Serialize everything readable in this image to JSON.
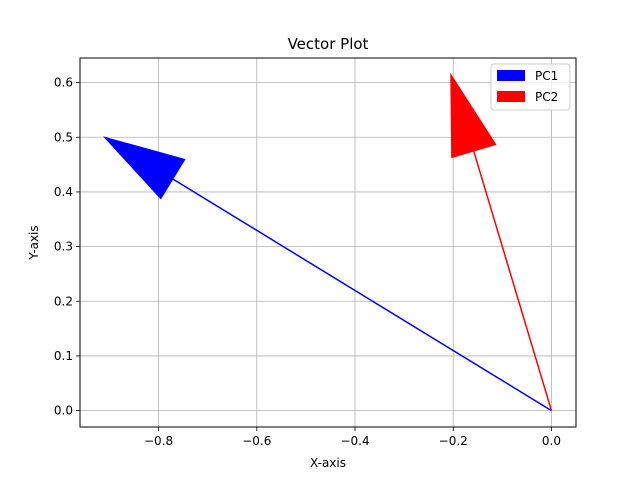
{
  "chart_data": {
    "type": "vector",
    "title": "Vector Plot",
    "xlabel": "X-axis",
    "ylabel": "Y-axis",
    "xlim": [
      -0.96,
      0.05
    ],
    "ylim": [
      -0.03,
      0.645
    ],
    "x_ticks": [
      -0.8,
      -0.6,
      -0.4,
      -0.2,
      0.0
    ],
    "x_tick_labels": [
      "−0.8",
      "−0.6",
      "−0.4",
      "−0.2",
      "0.0"
    ],
    "y_ticks": [
      0.0,
      0.1,
      0.2,
      0.3,
      0.4,
      0.5,
      0.6
    ],
    "y_tick_labels": [
      "0.0",
      "0.1",
      "0.2",
      "0.3",
      "0.4",
      "0.5",
      "0.6"
    ],
    "grid": true,
    "legend_position": "upper right",
    "series": [
      {
        "name": "PC1",
        "color": "#0000ff",
        "start": [
          0.0,
          0.0
        ],
        "end": [
          -0.91,
          0.5
        ]
      },
      {
        "name": "PC2",
        "color": "#ff0000",
        "start": [
          0.0,
          0.0
        ],
        "end": [
          -0.205,
          0.615
        ]
      }
    ]
  }
}
